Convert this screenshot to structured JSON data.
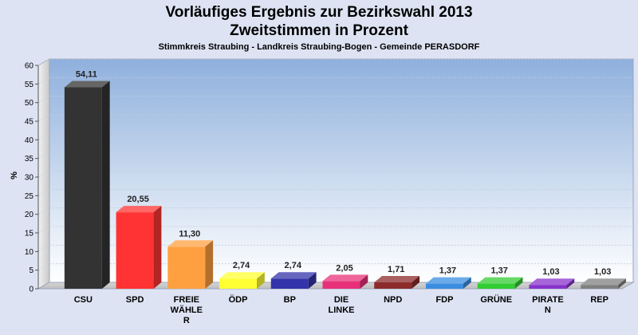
{
  "chart_data": {
    "type": "bar",
    "title_lines": [
      "Vorläufiges Ergebnis zur Bezirkswahl 2013",
      "Zweitstimmen in Prozent"
    ],
    "subtitle": "Stimmkreis Straubing - Landkreis Straubing-Bogen - Gemeinde PERASDORF",
    "ylabel": "%",
    "ylim": [
      0,
      60
    ],
    "yticks": [
      0,
      5,
      10,
      15,
      20,
      25,
      30,
      35,
      40,
      45,
      50,
      55,
      60
    ],
    "grid": true,
    "categories": [
      [
        "CSU"
      ],
      [
        "SPD"
      ],
      [
        "FREIE",
        "WÄHLE",
        "R"
      ],
      [
        "ÖDP"
      ],
      [
        "BP"
      ],
      [
        "DIE",
        "LINKE"
      ],
      [
        "NPD"
      ],
      [
        "FDP"
      ],
      [
        "GRÜNE"
      ],
      [
        "PIRATE",
        "N"
      ],
      [
        "REP"
      ]
    ],
    "values": [
      54.11,
      20.55,
      11.3,
      2.74,
      2.74,
      2.05,
      1.71,
      1.37,
      1.37,
      1.03,
      1.03
    ],
    "value_labels": [
      "54,11",
      "20,55",
      "11,30",
      "2,74",
      "2,74",
      "2,05",
      "1,71",
      "1,37",
      "1,37",
      "1,03",
      "1,03"
    ],
    "colors": [
      "#333333",
      "#ff3333",
      "#ffa040",
      "#ffff33",
      "#3333aa",
      "#e8307a",
      "#8b2b2b",
      "#3a8de0",
      "#33cc33",
      "#8833cc",
      "#808080"
    ]
  }
}
